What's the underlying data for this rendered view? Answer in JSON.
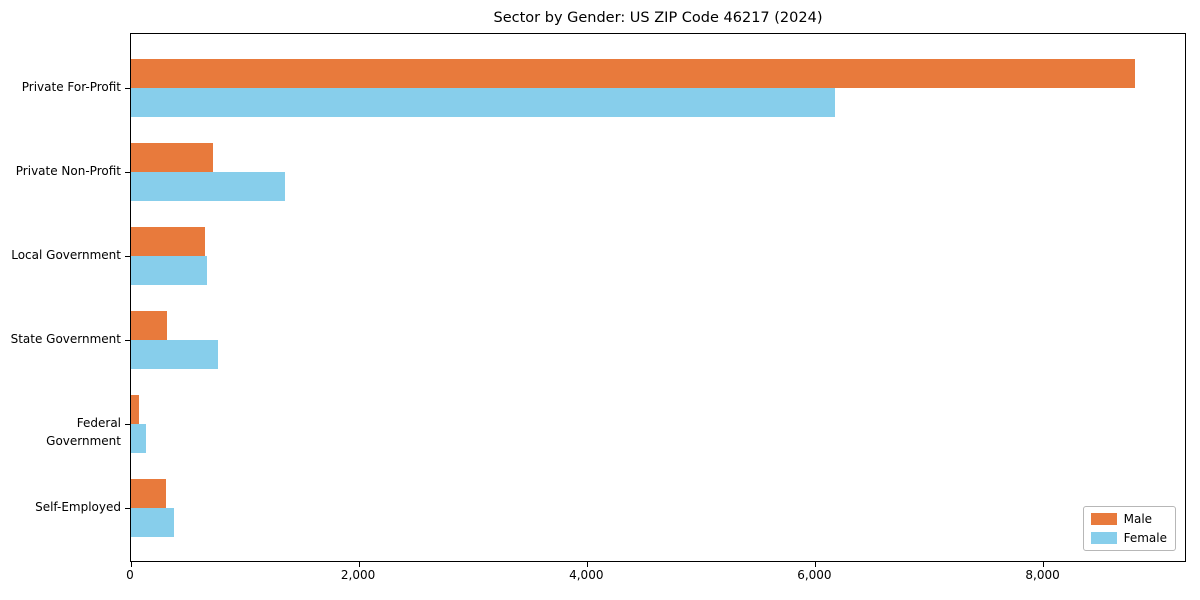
{
  "title": "Sector by Gender: US ZIP Code 46217 (2024)",
  "chart_data": {
    "type": "bar",
    "orientation": "horizontal",
    "title": "Sector by Gender: US ZIP Code 46217 (2024)",
    "categories": [
      "Private For-Profit",
      "Private Non-Profit",
      "Local Government",
      "State Government",
      "Federal Government",
      "Self-Employed"
    ],
    "series": [
      {
        "name": "Male",
        "color": "#e87a3c",
        "values": [
          8800,
          720,
          650,
          315,
          70,
          305
        ]
      },
      {
        "name": "Female",
        "color": "#87ceeb",
        "values": [
          6170,
          1350,
          665,
          760,
          135,
          380
        ]
      }
    ],
    "xlabel": "",
    "ylabel": "",
    "xlim": [
      0,
      9240
    ],
    "xticks": [
      0,
      2000,
      4000,
      6000,
      8000
    ],
    "xtick_labels": [
      "0",
      "2,000",
      "4,000",
      "6,000",
      "8,000"
    ],
    "grid": false,
    "legend_position": "lower right"
  },
  "legend": {
    "items": [
      {
        "label": "Male",
        "color": "#e87a3c"
      },
      {
        "label": "Female",
        "color": "#87ceeb"
      }
    ]
  }
}
